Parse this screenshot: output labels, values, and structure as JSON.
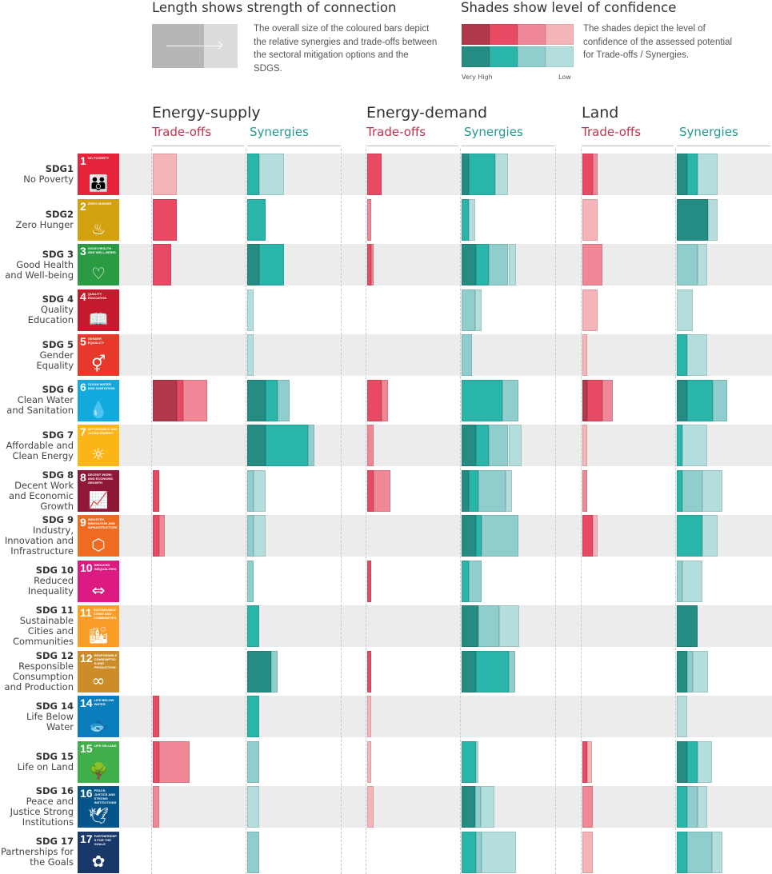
{
  "legend": {
    "length_title": "Length shows strength of connection",
    "length_text": "The overall size of the coloured bars depict the relative synergies and trade-offs between the sectoral mitigation options and the SDGS.",
    "shade_title": "Shades show level of confidence",
    "shade_text": "The shades depict the level of confidence of the assessed potential for Trade-offs / Synergies.",
    "very_high": "Very High",
    "low": "Low"
  },
  "colors": {
    "tradeoffs": {
      "VH": "#b03a4b",
      "H": "#e84a64",
      "M": "#ef8796",
      "L": "#f5b5b8"
    },
    "synergies": {
      "VH": "#258c84",
      "H": "#2ab5ab",
      "M": "#90cdcd",
      "L": "#b4dedd"
    },
    "tradeoff_label": "#c0344d",
    "synergy_label": "#239a8e",
    "band": "#ececec"
  },
  "chart_data": {
    "type": "bar",
    "orientation": "horizontal-stacked",
    "confidence_levels": [
      "VH",
      "H",
      "M",
      "L"
    ],
    "categories": [
      {
        "code": "SDG1",
        "lines": [
          "No Poverty"
        ],
        "icon": {
          "num": "1",
          "name": "No Poverty",
          "color": "#e5243b",
          "glyph": "family-icon",
          "char": "👪"
        }
      },
      {
        "code": "SDG2",
        "lines": [
          "Zero Hunger"
        ],
        "icon": {
          "num": "2",
          "name": "Zero Hunger",
          "color": "#d3a010",
          "glyph": "bowl-icon",
          "char": "♨"
        }
      },
      {
        "code": "SDG 3",
        "lines": [
          "Good Health",
          "and Well-being"
        ],
        "icon": {
          "num": "3",
          "name": "Good Health and Well-being",
          "color": "#2a9a43",
          "glyph": "heartbeat-icon",
          "char": "♡"
        }
      },
      {
        "code": "SDG 4",
        "lines": [
          "Quality",
          "Education"
        ],
        "icon": {
          "num": "4",
          "name": "Quality Education",
          "color": "#c5192d",
          "glyph": "book-icon",
          "char": "📖"
        }
      },
      {
        "code": "SDG 5",
        "lines": [
          "Gender",
          "Equality"
        ],
        "icon": {
          "num": "5",
          "name": "Gender Equality",
          "color": "#e8382a",
          "glyph": "gender-icon",
          "char": "⚥"
        }
      },
      {
        "code": "SDG 6",
        "lines": [
          "Clean Water",
          "and Sanitation"
        ],
        "icon": {
          "num": "6",
          "name": "Clean Water and Sanitation",
          "color": "#12a9dc",
          "glyph": "water-drop-icon",
          "char": "💧"
        }
      },
      {
        "code": "SDG 7",
        "lines": [
          "Affordable and",
          "Clean Energy"
        ],
        "icon": {
          "num": "7",
          "name": "Affordable and Clean Energy",
          "color": "#fbb517",
          "glyph": "sun-icon",
          "char": "☼"
        }
      },
      {
        "code": "SDG 8",
        "lines": [
          "Decent Work",
          "and Economic",
          "Growth"
        ],
        "icon": {
          "num": "8",
          "name": "Decent Work and Economic Growth",
          "color": "#8f1838",
          "glyph": "growth-chart-icon",
          "char": "📈"
        }
      },
      {
        "code": "SDG 9",
        "lines": [
          "Industry,",
          "Innovation and",
          "Infrastructure"
        ],
        "icon": {
          "num": "9",
          "name": "Industry, Innovation and Infrastructure",
          "color": "#ee6c22",
          "glyph": "cubes-icon",
          "char": "⬡"
        }
      },
      {
        "code": "SDG 10",
        "lines": [
          "Reduced",
          "Inequality"
        ],
        "icon": {
          "num": "10",
          "name": "Reduced Inequalities",
          "color": "#dd1a82",
          "glyph": "equality-icon",
          "char": "⇔"
        }
      },
      {
        "code": "SDG 11",
        "lines": [
          "Sustainable",
          "Cities and",
          "Communities"
        ],
        "icon": {
          "num": "11",
          "name": "Sustainable Cities and Communities",
          "color": "#f99d26",
          "glyph": "city-icon",
          "char": "🏙"
        }
      },
      {
        "code": "SDG 12",
        "lines": [
          "Responsible",
          "Consumption",
          "and Production"
        ],
        "icon": {
          "num": "12",
          "name": "Responsible Consumption and Production",
          "color": "#cc8c2a",
          "glyph": "infinity-icon",
          "char": "∞"
        }
      },
      {
        "code": "SDG 14",
        "lines": [
          "Life Below",
          "Water"
        ],
        "icon": {
          "num": "14",
          "name": "Life Below Water",
          "color": "#0a7dbd",
          "glyph": "fish-icon",
          "char": "🐟"
        }
      },
      {
        "code": "SDG 15",
        "lines": [
          "Life on Land"
        ],
        "icon": {
          "num": "15",
          "name": "Life on Land",
          "color": "#40ae49",
          "glyph": "tree-icon",
          "char": "🌳"
        }
      },
      {
        "code": "SDG 16",
        "lines": [
          "Peace and",
          "Justice Strong",
          "Institutions"
        ],
        "icon": {
          "num": "16",
          "name": "Peace, Justice and Strong Institutions",
          "color": "#05548a",
          "glyph": "dove-icon",
          "char": "🕊"
        }
      },
      {
        "code": "SDG 17",
        "lines": [
          "Partnerships for",
          "the Goals"
        ],
        "icon": {
          "num": "17",
          "name": "Partnerships for the Goals",
          "color": "#19386a",
          "glyph": "rings-icon",
          "char": "✿"
        }
      }
    ],
    "sectors": [
      {
        "name": "Energy-supply",
        "tradeoffs_label": "Trade-offs",
        "synergies_label": "Synergies",
        "tradeoffs": [
          [
            [
              "L",
              4
            ]
          ],
          [
            [
              "H",
              4
            ]
          ],
          [
            [
              "H",
              3
            ]
          ],
          [],
          [],
          [
            [
              "VH",
              4
            ],
            [
              "H",
              1
            ],
            [
              "M",
              4
            ]
          ],
          [],
          [
            [
              "H",
              1
            ]
          ],
          [
            [
              "H",
              1
            ],
            [
              "M",
              1
            ]
          ],
          [],
          [],
          [],
          [
            [
              "H",
              1
            ]
          ],
          [
            [
              "H",
              1
            ],
            [
              "M",
              5
            ]
          ],
          [
            [
              "M",
              1
            ]
          ],
          []
        ],
        "synergies": [
          [
            [
              "H",
              2
            ],
            [
              "L",
              4
            ]
          ],
          [
            [
              "H",
              3
            ]
          ],
          [
            [
              "VH",
              2
            ],
            [
              "H",
              4
            ]
          ],
          [
            [
              "L",
              1
            ]
          ],
          [
            [
              "L",
              1
            ]
          ],
          [
            [
              "VH",
              3
            ],
            [
              "H",
              2
            ],
            [
              "M",
              2
            ]
          ],
          [
            [
              "VH",
              3
            ],
            [
              "H",
              7
            ],
            [
              "M",
              1
            ]
          ],
          [
            [
              "M",
              1
            ],
            [
              "L",
              2
            ]
          ],
          [
            [
              "M",
              1
            ],
            [
              "L",
              2
            ]
          ],
          [
            [
              "M",
              1
            ]
          ],
          [
            [
              "H",
              2
            ]
          ],
          [
            [
              "VH",
              4
            ],
            [
              "M",
              1
            ]
          ],
          [
            [
              "H",
              2
            ]
          ],
          [
            [
              "M",
              2
            ]
          ],
          [
            [
              "L",
              2
            ]
          ],
          [
            [
              "M",
              2
            ]
          ]
        ]
      },
      {
        "name": "Energy-demand",
        "tradeoffs_label": "Trade-offs",
        "synergies_label": "Synergies",
        "tradeoffs": [
          [
            [
              "H",
              2.3
            ]
          ],
          [
            [
              "M",
              0.6
            ]
          ],
          [
            [
              "H",
              0.6
            ],
            [
              "M",
              0.5
            ]
          ],
          [],
          [],
          [
            [
              "H",
              2.3
            ],
            [
              "M",
              1.1
            ]
          ],
          [
            [
              "M",
              1.1
            ]
          ],
          [
            [
              "H",
              1.1
            ],
            [
              "M",
              2.7
            ]
          ],
          [],
          [
            [
              "H",
              0.6
            ]
          ],
          [],
          [
            [
              "H",
              0.6
            ]
          ],
          [
            [
              "L",
              0.6
            ]
          ],
          [
            [
              "L",
              0.6
            ]
          ],
          [
            [
              "L",
              1.1
            ]
          ],
          []
        ],
        "synergies": [
          [
            [
              "VH",
              1.2
            ],
            [
              "H",
              4.3
            ],
            [
              "L",
              2.2
            ]
          ],
          [
            [
              "H",
              1.2
            ],
            [
              "L",
              1
            ]
          ],
          [
            [
              "VH",
              2.3
            ],
            [
              "H",
              2.2
            ],
            [
              "M",
              3.2
            ],
            [
              "L",
              1.2
            ]
          ],
          [
            [
              "M",
              2.2
            ],
            [
              "L",
              1.1
            ]
          ],
          [
            [
              "M",
              1.7
            ]
          ],
          [
            [
              "H",
              6.7
            ],
            [
              "M",
              2.7
            ]
          ],
          [
            [
              "VH",
              2.3
            ],
            [
              "H",
              2.2
            ],
            [
              "M",
              3.2
            ],
            [
              "L",
              2.2
            ]
          ],
          [
            [
              "VH",
              1.2
            ],
            [
              "H",
              1.6
            ],
            [
              "M",
              4.4
            ],
            [
              "L",
              1.1
            ]
          ],
          [
            [
              "VH",
              2.3
            ],
            [
              "H",
              1
            ],
            [
              "M",
              6.1
            ]
          ],
          [
            [
              "H",
              1.2
            ],
            [
              "M",
              2.1
            ]
          ],
          [
            [
              "VH",
              2.8
            ],
            [
              "M",
              3.4
            ],
            [
              "L",
              3.3
            ]
          ],
          [
            [
              "VH",
              2.3
            ],
            [
              "H",
              5.4
            ],
            [
              "M",
              1.1
            ]
          ],
          [],
          [
            [
              "H",
              2.3
            ],
            [
              "L",
              0.5
            ]
          ],
          [
            [
              "VH",
              2.2
            ],
            [
              "M",
              1
            ],
            [
              "L",
              2.2
            ]
          ],
          [
            [
              "H",
              2.3
            ],
            [
              "M",
              1
            ],
            [
              "L",
              5.6
            ]
          ]
        ]
      },
      {
        "name": "Land",
        "tradeoffs_label": "Trade-offs",
        "synergies_label": "Synergies",
        "tradeoffs": [
          [
            [
              "H",
              1.7
            ],
            [
              "M",
              0.8
            ]
          ],
          [
            [
              "L",
              2.5
            ]
          ],
          [
            [
              "M",
              3.3
            ]
          ],
          [
            [
              "L",
              2.5
            ]
          ],
          [
            [
              "L",
              0.8
            ]
          ],
          [
            [
              "VH",
              0.8
            ],
            [
              "H",
              2.5
            ],
            [
              "M",
              1.7
            ]
          ],
          [
            [
              "L",
              0.8
            ]
          ],
          [
            [
              "M",
              0.8
            ]
          ],
          [
            [
              "H",
              1.7
            ],
            [
              "L",
              0.8
            ]
          ],
          [],
          [],
          [],
          [],
          [
            [
              "H",
              0.8
            ],
            [
              "L",
              0.8
            ]
          ],
          [
            [
              "M",
              1.7
            ]
          ],
          [
            [
              "L",
              1.7
            ]
          ]
        ],
        "synergies": [
          [
            [
              "VH",
              1.7
            ],
            [
              "H",
              1.7
            ],
            [
              "L",
              3.3
            ]
          ],
          [
            [
              "VH",
              5.1
            ],
            [
              "L",
              1.6
            ]
          ],
          [
            [
              "M",
              3.4
            ],
            [
              "L",
              1.6
            ]
          ],
          [
            [
              "L",
              2.6
            ]
          ],
          [
            [
              "H",
              1.7
            ],
            [
              "L",
              3.3
            ]
          ],
          [
            [
              "VH",
              1.7
            ],
            [
              "H",
              4.2
            ],
            [
              "M",
              2.4
            ]
          ],
          [
            [
              "H",
              0.9
            ],
            [
              "L",
              4.1
            ]
          ],
          [
            [
              "H",
              0.9
            ],
            [
              "M",
              3.3
            ],
            [
              "L",
              3.3
            ]
          ],
          [
            [
              "H",
              4.2
            ],
            [
              "L",
              2.5
            ]
          ],
          [
            [
              "M",
              0.9
            ],
            [
              "L",
              3.3
            ]
          ],
          [
            [
              "VH",
              3.4
            ]
          ],
          [
            [
              "VH",
              1.7
            ],
            [
              "M",
              0.9
            ],
            [
              "L",
              2.5
            ]
          ],
          [
            [
              "L",
              1.7
            ]
          ],
          [
            [
              "VH",
              1.7
            ],
            [
              "H",
              1.7
            ],
            [
              "L",
              2.4
            ]
          ],
          [
            [
              "H",
              1.7
            ],
            [
              "M",
              1.7
            ],
            [
              "L",
              1.6
            ]
          ],
          [
            [
              "H",
              1.7
            ],
            [
              "M",
              4.1
            ],
            [
              "L",
              1.7
            ]
          ]
        ]
      }
    ]
  }
}
